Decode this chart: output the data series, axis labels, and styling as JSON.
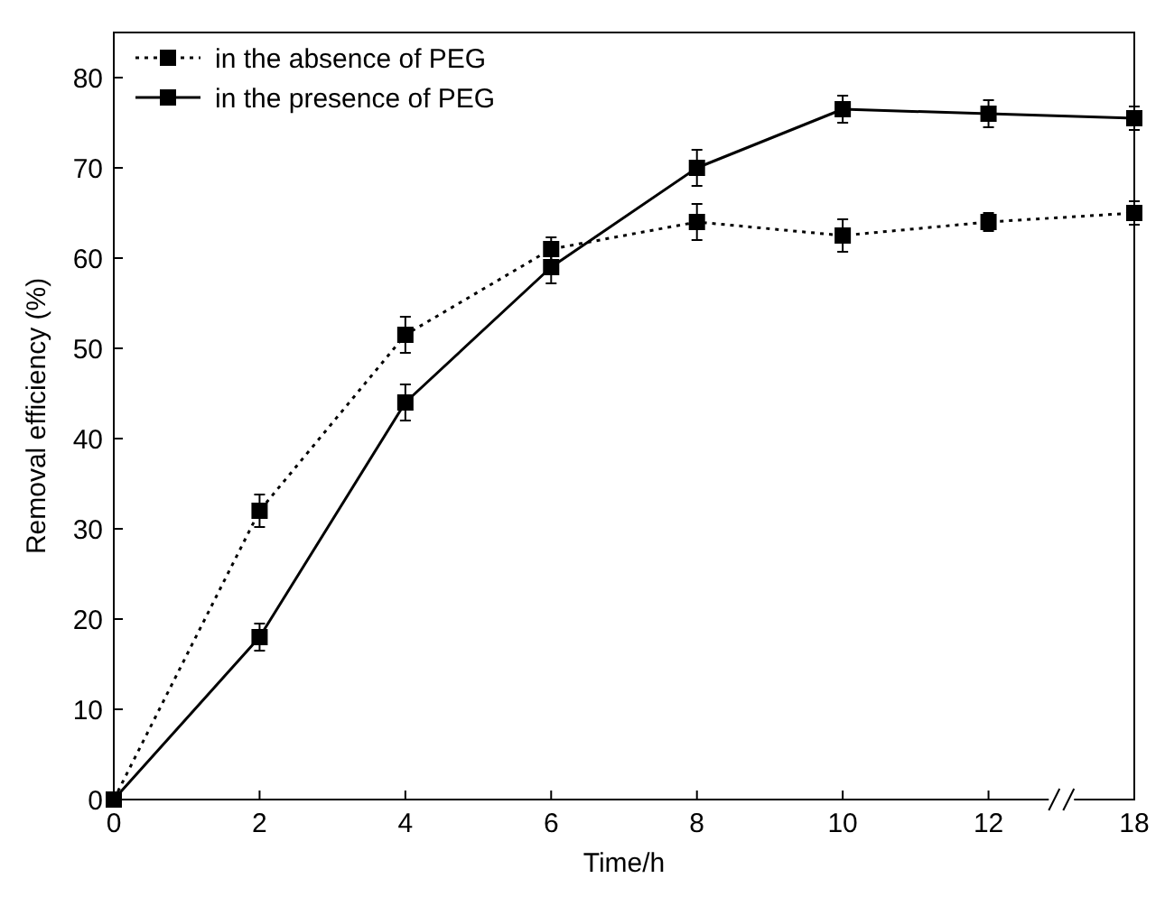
{
  "chart_data": {
    "type": "line",
    "xlabel": "Time/h",
    "ylabel": "Removal efficiency (%)",
    "categories": [
      "0",
      "2",
      "4",
      "6",
      "8",
      "10",
      "12",
      "18"
    ],
    "ylim": [
      0,
      85
    ],
    "yticks": [
      0,
      10,
      20,
      30,
      40,
      50,
      60,
      70,
      80
    ],
    "legend": "top left",
    "marker": "square",
    "grid": false,
    "series": [
      {
        "name": "in the absence of PEG",
        "color": "#000000",
        "line_style": "dotted",
        "values": [
          0,
          32,
          51.5,
          61,
          64,
          62.5,
          64,
          65
        ],
        "errors": [
          null,
          1.8,
          2,
          1.3,
          2,
          1.8,
          1,
          1.3
        ]
      },
      {
        "name": "in the presence of PEG",
        "color": "#000000",
        "line_style": "solid",
        "values": [
          0,
          18,
          44,
          59,
          70,
          76.5,
          76,
          75.5
        ],
        "errors": [
          null,
          1.5,
          2,
          1.8,
          2,
          1.5,
          1.5,
          1.3
        ]
      }
    ]
  }
}
